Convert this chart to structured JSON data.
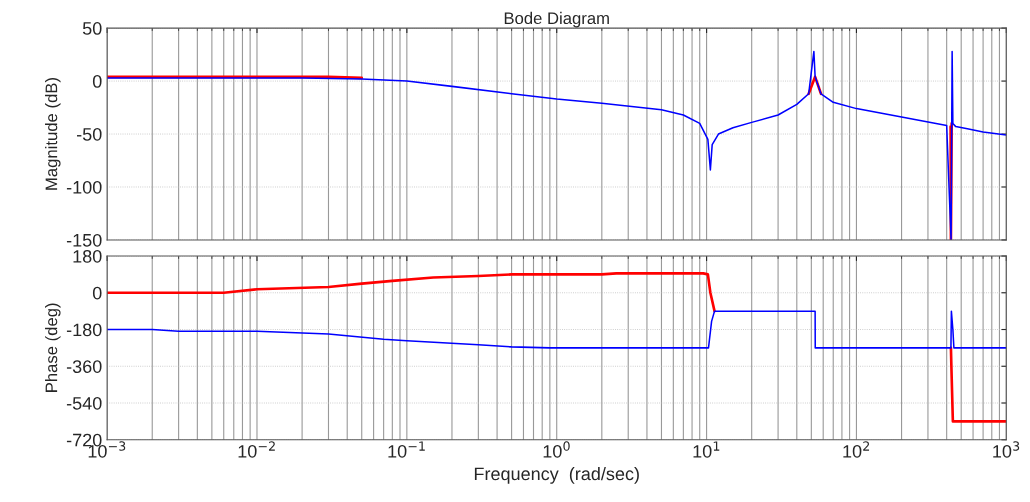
{
  "chart_data": [
    {
      "type": "line",
      "title": "Bode Diagram",
      "ylabel": "Magnitude (dB)",
      "log": "x",
      "grid": true,
      "tick_labels": "y",
      "xlim": [
        0.001,
        1000
      ],
      "ylim": [
        -150,
        50
      ],
      "yticks": [
        -150,
        -100,
        -50,
        0,
        50
      ],
      "xticks": [
        {
          "value": 0.001,
          "label": null
        },
        {
          "value": 0.01,
          "label": null
        },
        {
          "value": 0.1,
          "label": null
        },
        {
          "value": 1,
          "label": null
        },
        {
          "value": 10,
          "label": null
        },
        {
          "value": 100,
          "label": null
        },
        {
          "value": 1000,
          "label": null
        }
      ],
      "series": [
        {
          "color": "#ff0000",
          "x": [
            0.001,
            0.03,
            0.05,
            0.06,
            48,
            53,
            58,
            60,
            425,
            427,
            432
          ],
          "values": [
            4,
            4,
            3,
            null,
            -12,
            4,
            -12,
            null,
            -43,
            -150,
            -40
          ]
        },
        {
          "color": "#0000ff",
          "x": [
            0.001,
            0.02,
            0.05,
            0.1,
            0.2,
            0.5,
            1,
            2,
            5,
            7,
            9,
            10.2,
            10.6,
            10.9,
            12,
            15,
            20,
            30,
            40,
            48,
            52,
            53,
            58,
            70,
            100,
            200,
            400,
            428,
            435,
            440,
            460,
            550,
            700,
            1000
          ],
          "values": [
            3,
            3,
            2,
            0,
            -5,
            -12,
            -17,
            -21,
            -27,
            -32,
            -40,
            -55,
            -84,
            -60,
            -50,
            -44,
            -39,
            -32,
            -22,
            -12,
            28,
            4,
            -12,
            -20,
            -26,
            -34,
            -42,
            -150,
            28,
            -40,
            -43,
            -45,
            -48,
            -51
          ]
        }
      ]
    },
    {
      "type": "line",
      "xlabel": "Frequency  (rad/sec)",
      "ylabel": "Phase (deg)",
      "log": "x",
      "grid": true,
      "xlim": [
        0.001,
        1000
      ],
      "ylim": [
        -720,
        180
      ],
      "yticks": [
        -720,
        -540,
        -360,
        -180,
        0,
        180
      ],
      "xticks": [
        {
          "value": 0.001,
          "label": "10$^{−3}$"
        },
        {
          "value": 0.01,
          "label": "10$^{−2}$"
        },
        {
          "value": 0.1,
          "label": "10$^{−1}$"
        },
        {
          "value": 1,
          "label": "10$^{0}$"
        },
        {
          "value": 10,
          "label": "10$^{1}$"
        },
        {
          "value": 100,
          "label": "10$^{2}$"
        },
        {
          "value": 1000,
          "label": "10$^{3}$"
        }
      ],
      "series": [
        {
          "color": "#ff0000",
          "x": [
            0.001,
            0.006,
            0.01,
            0.03,
            0.05,
            0.08,
            0.15,
            0.3,
            0.5,
            2,
            2.5,
            9.5,
            10.2,
            10.6,
            11.3,
            12,
            400,
            427,
            430,
            440,
            1000
          ],
          "values": [
            0,
            0,
            17,
            28,
            45,
            58,
            75,
            82,
            90,
            90,
            95,
            95,
            90,
            0,
            -90,
            null,
            null,
            -270,
            -360,
            -630,
            -630
          ]
        },
        {
          "color": "#0000ff",
          "x": [
            0.001,
            0.002,
            0.003,
            0.01,
            0.03,
            0.07,
            0.1,
            0.3,
            0.5,
            0.9,
            10,
            10.3,
            10.8,
            11.3,
            53,
            53.1,
            427,
            430,
            440,
            447,
            1000
          ],
          "values": [
            -180,
            -180,
            -188,
            -188,
            -202,
            -228,
            -235,
            -255,
            -265,
            -270,
            -270,
            -270,
            -140,
            -90,
            -90,
            -270,
            -270,
            -90,
            -180,
            -270,
            -270
          ]
        }
      ]
    }
  ]
}
